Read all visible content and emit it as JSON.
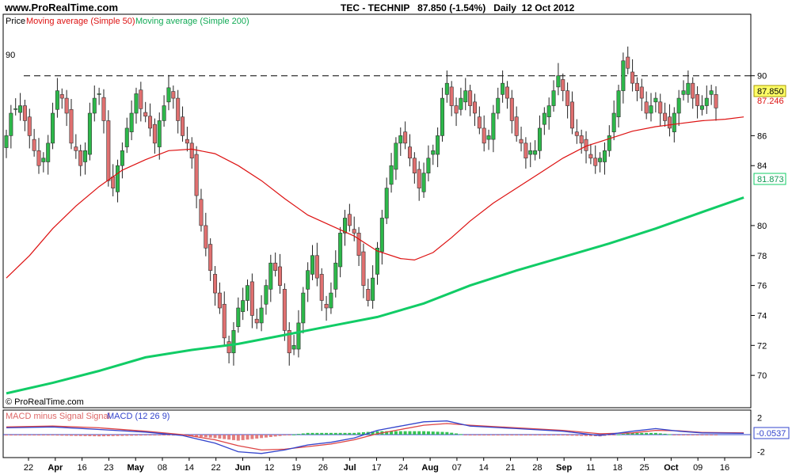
{
  "header": {
    "site": "www.ProRealTime.com",
    "instrument": "TEC - TECHNIP",
    "last_price": "87.850",
    "change": "(-1.54%)",
    "period": "Daily",
    "date": "12 Oct 2012"
  },
  "price_panel": {
    "legend_price": "Price",
    "legend_ma50": "Moving average (Simple 50)",
    "legend_ma200": "Moving average (Simple 200)",
    "copyright": "© ProRealTime.com",
    "hline_label": "90",
    "last_price_box": "87.850",
    "ma50_box": "87.246",
    "ma200_box": "81.873"
  },
  "macd_panel": {
    "legend_hist": "MACD minus Signal Signal",
    "legend_macd": "MACD (12 26 9)",
    "last_value_box": "-0.0537",
    "y_ticks": [
      "2",
      "0",
      "-2"
    ]
  },
  "colors": {
    "up": "#2db84a",
    "down": "#e07070",
    "ma50": "#dd1111",
    "ma200": "#11cc66",
    "macd_line": "#3344cc",
    "signal_line": "#dd4444",
    "hist": "#22bb44"
  },
  "chart_data": {
    "type": "candlestick",
    "ylim": [
      68,
      94
    ],
    "y_ticks": [
      70,
      72,
      74,
      76,
      78,
      80,
      84,
      86,
      90
    ],
    "x_tick_labels": [
      "22",
      "Apr",
      "16",
      "23",
      "May",
      "08",
      "14",
      "22",
      "Jun",
      "12",
      "19",
      "26",
      "Jul",
      "17",
      "24",
      "Aug",
      "07",
      "14",
      "21",
      "28",
      "Sep",
      "11",
      "18",
      "25",
      "Oct",
      "09",
      "16"
    ],
    "reference_line": 90,
    "closes": [
      86.0,
      87.5,
      87.8,
      88.0,
      87.0,
      86.0,
      85.0,
      84.0,
      84.5,
      85.5,
      87.5,
      89.0,
      88.5,
      87.5,
      85.5,
      85.0,
      84.0,
      85.0,
      87.5,
      88.5,
      88.8,
      87.0,
      83.0,
      82.5,
      84.0,
      85.0,
      86.5,
      87.5,
      88.8,
      87.8,
      87.3,
      86.5,
      85.5,
      87.0,
      88.0,
      89.2,
      88.5,
      87.0,
      86.0,
      85.5,
      84.5,
      82.0,
      80.0,
      78.5,
      77.0,
      75.5,
      74.5,
      72.5,
      71.5,
      73.0,
      74.5,
      75.0,
      76.0,
      74.0,
      73.5,
      74.5,
      76.0,
      77.5,
      77.0,
      76.0,
      73.0,
      71.5,
      72.0,
      73.5,
      75.5,
      77.0,
      78.0,
      76.5,
      75.0,
      74.5,
      75.5,
      77.5,
      79.5,
      80.5,
      80.0,
      79.5,
      78.0,
      76.0,
      75.0,
      76.5,
      78.5,
      80.5,
      82.5,
      84.0,
      85.5,
      86.0,
      85.5,
      84.5,
      83.5,
      82.5,
      83.5,
      84.5,
      85.0,
      86.0,
      88.5,
      89.5,
      88.0,
      87.5,
      88.5,
      89.0,
      88.0,
      87.5,
      86.5,
      85.5,
      86.0,
      87.5,
      88.5,
      89.5,
      88.5,
      87.0,
      86.0,
      85.5,
      84.5,
      85.0,
      85.0,
      86.5,
      87.5,
      88.0,
      89.0,
      90.0,
      89.0,
      88.0,
      86.5,
      86.0,
      85.5,
      85.0,
      84.5,
      84.0,
      84.5,
      85.0,
      86.0,
      87.5,
      89.0,
      91.0,
      90.5,
      89.5,
      89.0,
      88.5,
      87.5,
      88.0,
      88.5,
      87.5,
      87.0,
      86.5,
      87.5,
      88.5,
      89.0,
      89.5,
      88.5,
      88.0,
      88.0,
      88.5,
      89.0,
      87.85
    ],
    "ma50": [
      {
        "x": 0,
        "y": 76.5
      },
      {
        "x": 5,
        "y": 78.0
      },
      {
        "x": 10,
        "y": 79.8
      },
      {
        "x": 15,
        "y": 81.3
      },
      {
        "x": 20,
        "y": 82.6
      },
      {
        "x": 25,
        "y": 83.7
      },
      {
        "x": 30,
        "y": 84.4
      },
      {
        "x": 35,
        "y": 85.0
      },
      {
        "x": 40,
        "y": 85.1
      },
      {
        "x": 45,
        "y": 84.8
      },
      {
        "x": 50,
        "y": 84.0
      },
      {
        "x": 55,
        "y": 83.0
      },
      {
        "x": 60,
        "y": 81.8
      },
      {
        "x": 65,
        "y": 80.7
      },
      {
        "x": 70,
        "y": 80.0
      },
      {
        "x": 75,
        "y": 79.3
      },
      {
        "x": 80,
        "y": 78.3
      },
      {
        "x": 85,
        "y": 77.8
      },
      {
        "x": 88,
        "y": 77.7
      },
      {
        "x": 92,
        "y": 78.2
      },
      {
        "x": 96,
        "y": 79.2
      },
      {
        "x": 100,
        "y": 80.3
      },
      {
        "x": 105,
        "y": 81.5
      },
      {
        "x": 110,
        "y": 82.5
      },
      {
        "x": 115,
        "y": 83.5
      },
      {
        "x": 120,
        "y": 84.5
      },
      {
        "x": 125,
        "y": 85.3
      },
      {
        "x": 130,
        "y": 85.8
      },
      {
        "x": 135,
        "y": 86.3
      },
      {
        "x": 140,
        "y": 86.6
      },
      {
        "x": 145,
        "y": 86.8
      },
      {
        "x": 150,
        "y": 87.0
      },
      {
        "x": 155,
        "y": 87.1
      },
      {
        "x": 159,
        "y": 87.25
      }
    ],
    "ma200": [
      {
        "x": 0,
        "y": 68.8
      },
      {
        "x": 10,
        "y": 69.5
      },
      {
        "x": 20,
        "y": 70.3
      },
      {
        "x": 30,
        "y": 71.2
      },
      {
        "x": 40,
        "y": 71.7
      },
      {
        "x": 50,
        "y": 72.1
      },
      {
        "x": 60,
        "y": 72.7
      },
      {
        "x": 70,
        "y": 73.3
      },
      {
        "x": 80,
        "y": 73.9
      },
      {
        "x": 90,
        "y": 74.8
      },
      {
        "x": 100,
        "y": 76.0
      },
      {
        "x": 110,
        "y": 77.0
      },
      {
        "x": 120,
        "y": 77.9
      },
      {
        "x": 130,
        "y": 78.8
      },
      {
        "x": 140,
        "y": 79.8
      },
      {
        "x": 150,
        "y": 80.9
      },
      {
        "x": 159,
        "y": 81.873
      }
    ],
    "macd": [
      {
        "x": 0,
        "y": 0.8
      },
      {
        "x": 10,
        "y": 0.9
      },
      {
        "x": 20,
        "y": 0.6
      },
      {
        "x": 30,
        "y": 0.3
      },
      {
        "x": 38,
        "y": -0.1
      },
      {
        "x": 45,
        "y": -1.0
      },
      {
        "x": 50,
        "y": -2.0
      },
      {
        "x": 55,
        "y": -2.2
      },
      {
        "x": 60,
        "y": -1.8
      },
      {
        "x": 65,
        "y": -1.2
      },
      {
        "x": 70,
        "y": -0.9
      },
      {
        "x": 75,
        "y": -0.4
      },
      {
        "x": 80,
        "y": 0.5
      },
      {
        "x": 85,
        "y": 1.0
      },
      {
        "x": 90,
        "y": 1.5
      },
      {
        "x": 95,
        "y": 1.6
      },
      {
        "x": 100,
        "y": 1.0
      },
      {
        "x": 110,
        "y": 0.7
      },
      {
        "x": 120,
        "y": 0.4
      },
      {
        "x": 128,
        "y": -0.1
      },
      {
        "x": 135,
        "y": 0.4
      },
      {
        "x": 140,
        "y": 0.7
      },
      {
        "x": 145,
        "y": 0.4
      },
      {
        "x": 150,
        "y": 0.2
      },
      {
        "x": 159,
        "y": 0.15
      }
    ],
    "signal": [
      {
        "x": 0,
        "y": 0.9
      },
      {
        "x": 10,
        "y": 1.0
      },
      {
        "x": 20,
        "y": 0.8
      },
      {
        "x": 30,
        "y": 0.4
      },
      {
        "x": 38,
        "y": 0.0
      },
      {
        "x": 45,
        "y": -0.6
      },
      {
        "x": 50,
        "y": -1.3
      },
      {
        "x": 55,
        "y": -1.8
      },
      {
        "x": 60,
        "y": -1.7
      },
      {
        "x": 65,
        "y": -1.4
      },
      {
        "x": 70,
        "y": -1.1
      },
      {
        "x": 75,
        "y": -0.6
      },
      {
        "x": 80,
        "y": 0.1
      },
      {
        "x": 85,
        "y": 0.6
      },
      {
        "x": 90,
        "y": 1.1
      },
      {
        "x": 95,
        "y": 1.3
      },
      {
        "x": 100,
        "y": 1.1
      },
      {
        "x": 110,
        "y": 0.8
      },
      {
        "x": 120,
        "y": 0.5
      },
      {
        "x": 128,
        "y": 0.1
      },
      {
        "x": 135,
        "y": 0.2
      },
      {
        "x": 140,
        "y": 0.5
      },
      {
        "x": 145,
        "y": 0.45
      },
      {
        "x": 150,
        "y": 0.25
      },
      {
        "x": 159,
        "y": 0.2
      }
    ],
    "macd_ylim": [
      -2.5,
      2.5
    ]
  }
}
